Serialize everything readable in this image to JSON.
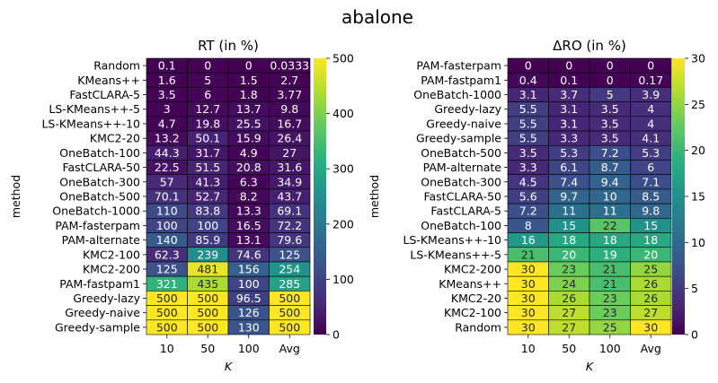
{
  "suptitle": "abalone",
  "chart_data": [
    {
      "type": "heatmap",
      "title": "RT (in %)",
      "xlabel": "K",
      "ylabel": "method",
      "columns": [
        "10",
        "50",
        "100",
        "Avg"
      ],
      "rows": [
        "Random",
        "KMeans++",
        "FastCLARA-5",
        "LS-KMeans++-5",
        "LS-KMeans++-10",
        "KMC2-20",
        "OneBatch-100",
        "FastCLARA-50",
        "OneBatch-300",
        "OneBatch-500",
        "OneBatch-1000",
        "PAM-fasterpam",
        "PAM-alternate",
        "KMC2-100",
        "KMC2-200",
        "PAM-fastpam1",
        "Greedy-lazy",
        "Greedy-naive",
        "Greedy-sample"
      ],
      "labels": [
        [
          "0.1",
          "0",
          "0",
          "0.0333"
        ],
        [
          "1.6",
          "5",
          "1.5",
          "2.7"
        ],
        [
          "3.5",
          "6",
          "1.8",
          "3.77"
        ],
        [
          "3",
          "12.7",
          "13.7",
          "9.8"
        ],
        [
          "4.7",
          "19.8",
          "25.5",
          "16.7"
        ],
        [
          "13.2",
          "50.1",
          "15.9",
          "26.4"
        ],
        [
          "44.3",
          "31.7",
          "4.9",
          "27"
        ],
        [
          "22.5",
          "51.5",
          "20.8",
          "31.6"
        ],
        [
          "57",
          "41.3",
          "6.3",
          "34.9"
        ],
        [
          "70.1",
          "52.7",
          "8.2",
          "43.7"
        ],
        [
          "110",
          "83.8",
          "13.3",
          "69.1"
        ],
        [
          "100",
          "100",
          "16.5",
          "72.2"
        ],
        [
          "140",
          "85.9",
          "13.1",
          "79.6"
        ],
        [
          "62.3",
          "239",
          "74.6",
          "125"
        ],
        [
          "125",
          "481",
          "156",
          "254"
        ],
        [
          "321",
          "435",
          "100",
          "285"
        ],
        [
          "500",
          "500",
          "96.5",
          "500"
        ],
        [
          "500",
          "500",
          "126",
          "500"
        ],
        [
          "500",
          "500",
          "130",
          "500"
        ]
      ],
      "colorbar": {
        "min": 0,
        "max": 500,
        "ticks": [
          0,
          100,
          200,
          300,
          400,
          500
        ],
        "colormap": "viridis"
      }
    },
    {
      "type": "heatmap",
      "title": "ΔRO (in %)",
      "xlabel": "K",
      "ylabel": "method",
      "columns": [
        "10",
        "50",
        "100",
        "Avg"
      ],
      "rows": [
        "PAM-fasterpam",
        "PAM-fastpam1",
        "OneBatch-1000",
        "Greedy-lazy",
        "Greedy-naive",
        "Greedy-sample",
        "OneBatch-500",
        "PAM-alternate",
        "OneBatch-300",
        "FastCLARA-50",
        "FastCLARA-5",
        "OneBatch-100",
        "LS-KMeans++-10",
        "LS-KMeans++-5",
        "KMC2-200",
        "KMeans++",
        "KMC2-20",
        "KMC2-100",
        "Random"
      ],
      "labels": [
        [
          "0",
          "0",
          "0",
          "0"
        ],
        [
          "0.4",
          "0.1",
          "0",
          "0.17"
        ],
        [
          "3.1",
          "3.7",
          "5",
          "3.9"
        ],
        [
          "5.5",
          "3.1",
          "3.5",
          "4"
        ],
        [
          "5.5",
          "3.1",
          "3.5",
          "4"
        ],
        [
          "5.5",
          "3.3",
          "3.5",
          "4.1"
        ],
        [
          "3.5",
          "5.3",
          "7.2",
          "5.3"
        ],
        [
          "3.3",
          "6.1",
          "8.7",
          "6"
        ],
        [
          "4.5",
          "7.4",
          "9.4",
          "7.1"
        ],
        [
          "5.6",
          "9.7",
          "10",
          "8.5"
        ],
        [
          "7.2",
          "11",
          "11",
          "9.8"
        ],
        [
          "8",
          "15",
          "22",
          "15"
        ],
        [
          "16",
          "18",
          "18",
          "18"
        ],
        [
          "21",
          "20",
          "19",
          "20"
        ],
        [
          "30",
          "23",
          "21",
          "25"
        ],
        [
          "30",
          "24",
          "21",
          "26"
        ],
        [
          "30",
          "26",
          "23",
          "26"
        ],
        [
          "30",
          "27",
          "23",
          "27"
        ],
        [
          "30",
          "27",
          "25",
          "30"
        ]
      ],
      "colorbar": {
        "min": 0,
        "max": 30,
        "ticks": [
          0,
          5,
          10,
          15,
          20,
          25,
          30
        ],
        "colormap": "viridis"
      }
    }
  ]
}
